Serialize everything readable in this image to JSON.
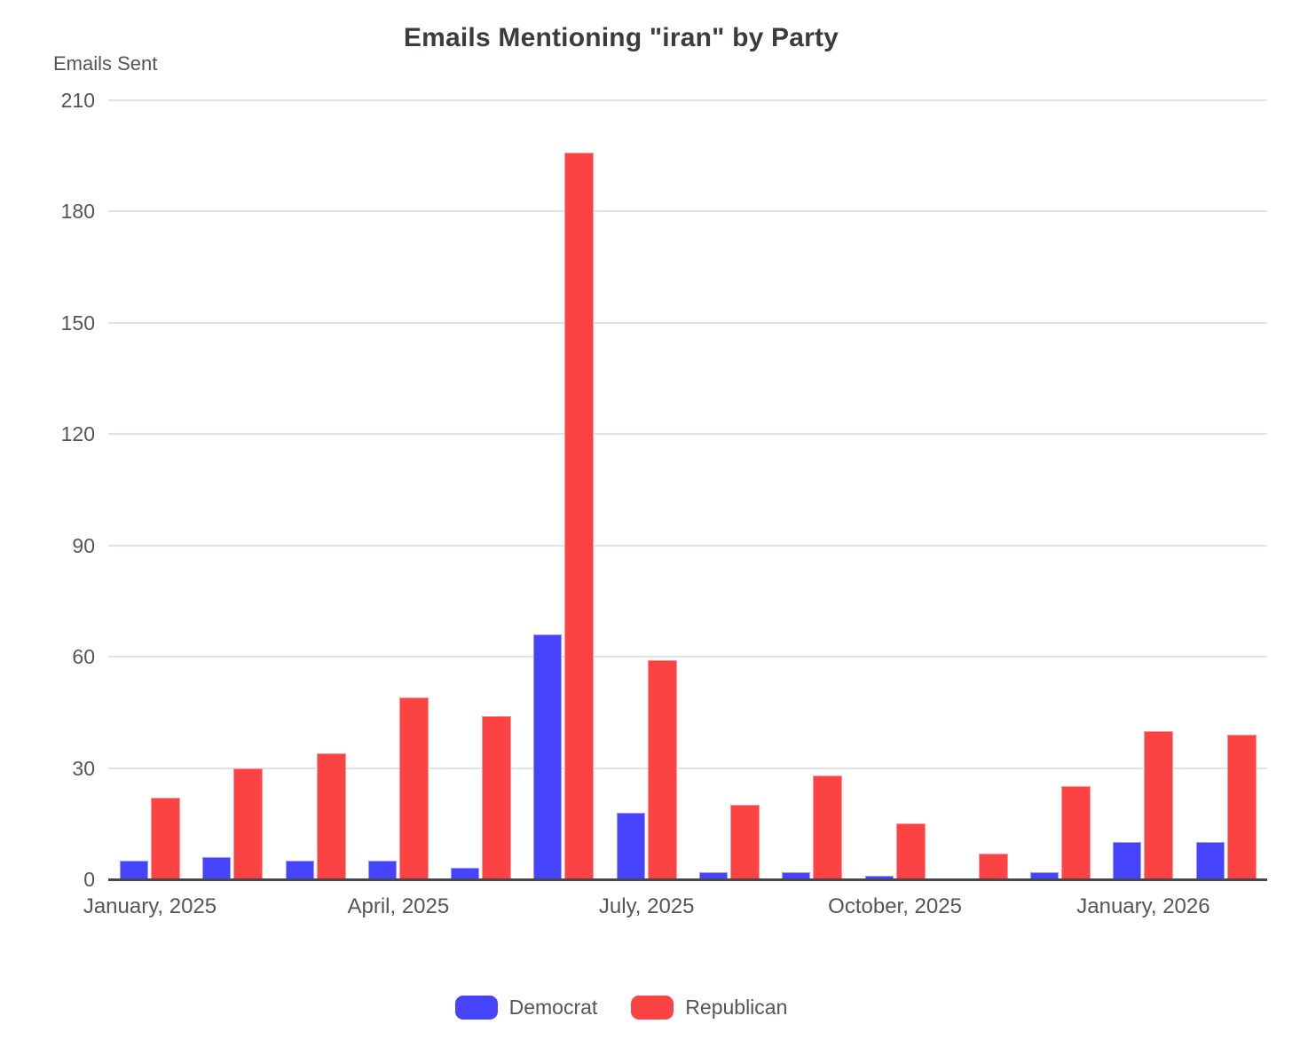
{
  "title": "Emails Mentioning \"iran\" by Party",
  "y_axis_label": "Emails Sent",
  "colors": {
    "democrat": "#4644FB",
    "republican": "#FB4343",
    "gridline": "#DFE2E7",
    "axis_line": "#47484D",
    "text": "#54555A",
    "title_text": "#3B3C40"
  },
  "chart_data": {
    "type": "bar",
    "title": "Emails Mentioning \"iran\" by Party",
    "ylabel": "Emails Sent",
    "xlabel": "",
    "ylim": [
      0,
      210
    ],
    "y_ticks": [
      0,
      30,
      60,
      90,
      120,
      150,
      180,
      210
    ],
    "grid": true,
    "legend_position": "bottom",
    "categories": [
      "January 2025",
      "February 2025",
      "March 2025",
      "April 2025",
      "May 2025",
      "June 2025",
      "July 2025",
      "August 2025",
      "September 2025",
      "October 2025",
      "November 2025",
      "December 2025",
      "January 2026",
      "February 2026"
    ],
    "x_tick_labels": [
      {
        "index": 0,
        "label": "January, 2025"
      },
      {
        "index": 3,
        "label": "April, 2025"
      },
      {
        "index": 6,
        "label": "July, 2025"
      },
      {
        "index": 9,
        "label": "October, 2025"
      },
      {
        "index": 12,
        "label": "January, 2026"
      }
    ],
    "series": [
      {
        "name": "Democrat",
        "color": "#4644FB",
        "values": [
          5,
          6,
          5,
          5,
          3,
          66,
          18,
          2,
          2,
          1,
          0,
          2,
          10,
          10
        ]
      },
      {
        "name": "Republican",
        "color": "#FB4343",
        "values": [
          22,
          30,
          34,
          49,
          44,
          196,
          59,
          20,
          28,
          15,
          7,
          25,
          40,
          39
        ]
      }
    ]
  }
}
